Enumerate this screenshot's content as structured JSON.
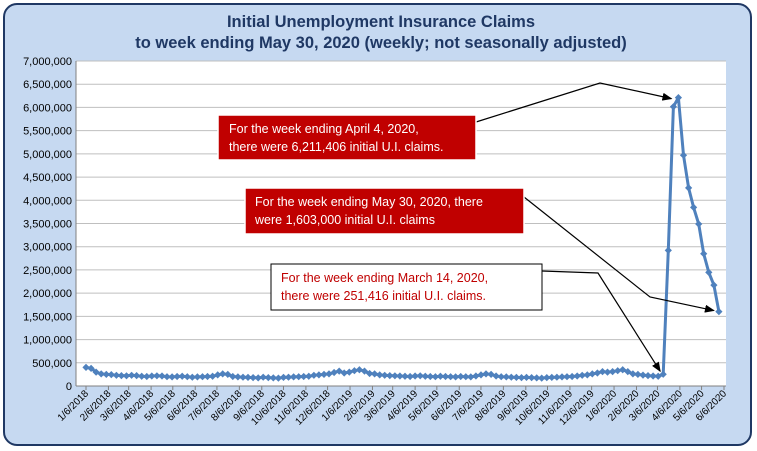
{
  "chart_data": {
    "type": "line",
    "title": "Initial Unemployment Insurance Claims",
    "subtitle": "to week ending May 30, 2020 (weekly; not seasonally adjusted)",
    "xlabel": "",
    "ylabel": "",
    "ylim": [
      0,
      7000000
    ],
    "y_ticks": [
      "0",
      "500,000",
      "1,000,000",
      "1,500,000",
      "2,000,000",
      "2,500,000",
      "3,000,000",
      "3,500,000",
      "4,000,000",
      "4,500,000",
      "5,000,000",
      "5,500,000",
      "6,000,000",
      "6,500,000",
      "7,000,000"
    ],
    "x_ticks": [
      "1/6/2018",
      "2/6/2018",
      "3/6/2018",
      "4/6/2018",
      "5/6/2018",
      "6/6/2018",
      "7/6/2018",
      "8/6/2018",
      "9/6/2018",
      "10/6/2018",
      "11/6/2018",
      "12/6/2018",
      "1/6/2019",
      "2/6/2019",
      "3/6/2019",
      "4/6/2019",
      "5/6/2019",
      "6/6/2019",
      "7/6/2019",
      "8/6/2019",
      "9/6/2019",
      "10/6/2019",
      "11/6/2019",
      "12/6/2019",
      "1/6/2020",
      "2/6/2020",
      "3/6/2020",
      "4/6/2020",
      "5/6/2020",
      "6/6/2020"
    ],
    "grid": true,
    "legend": "none",
    "series_color": "#4f81bd",
    "series": [
      {
        "x": [
          "2018-01-06",
          "2018-01-13",
          "2018-01-20",
          "2018-01-27",
          "2018-02-03",
          "2018-02-10",
          "2018-02-17",
          "2018-02-24",
          "2018-03-03",
          "2018-03-10",
          "2018-03-17",
          "2018-03-24",
          "2018-03-31",
          "2018-04-07",
          "2018-04-14",
          "2018-04-21",
          "2018-04-28",
          "2018-05-05",
          "2018-05-12",
          "2018-05-19",
          "2018-05-26",
          "2018-06-02",
          "2018-06-09",
          "2018-06-16",
          "2018-06-23",
          "2018-06-30",
          "2018-07-07",
          "2018-07-14",
          "2018-07-21",
          "2018-07-28",
          "2018-08-04",
          "2018-08-11",
          "2018-08-18",
          "2018-08-25",
          "2018-09-01",
          "2018-09-08",
          "2018-09-15",
          "2018-09-22",
          "2018-09-29",
          "2018-10-06",
          "2018-10-13",
          "2018-10-20",
          "2018-10-27",
          "2018-11-03",
          "2018-11-10",
          "2018-11-17",
          "2018-11-24",
          "2018-12-01",
          "2018-12-08",
          "2018-12-15",
          "2018-12-22",
          "2018-12-29",
          "2019-01-05",
          "2019-01-12",
          "2019-01-19",
          "2019-01-26",
          "2019-02-02",
          "2019-02-09",
          "2019-02-16",
          "2019-02-23",
          "2019-03-02",
          "2019-03-09",
          "2019-03-16",
          "2019-03-23",
          "2019-03-30",
          "2019-04-06",
          "2019-04-13",
          "2019-04-20",
          "2019-04-27",
          "2019-05-04",
          "2019-05-11",
          "2019-05-18",
          "2019-05-25",
          "2019-06-01",
          "2019-06-08",
          "2019-06-15",
          "2019-06-22",
          "2019-06-29",
          "2019-07-06",
          "2019-07-13",
          "2019-07-20",
          "2019-07-27",
          "2019-08-03",
          "2019-08-10",
          "2019-08-17",
          "2019-08-24",
          "2019-08-31",
          "2019-09-07",
          "2019-09-14",
          "2019-09-21",
          "2019-09-28",
          "2019-10-05",
          "2019-10-12",
          "2019-10-19",
          "2019-10-26",
          "2019-11-02",
          "2019-11-09",
          "2019-11-16",
          "2019-11-23",
          "2019-11-30",
          "2019-12-07",
          "2019-12-14",
          "2019-12-21",
          "2019-12-28",
          "2020-01-04",
          "2020-01-11",
          "2020-01-18",
          "2020-01-25",
          "2020-02-01",
          "2020-02-08",
          "2020-02-15",
          "2020-02-22",
          "2020-02-29",
          "2020-03-07",
          "2020-03-14",
          "2020-03-21",
          "2020-03-28",
          "2020-04-04",
          "2020-04-11",
          "2020-04-18",
          "2020-04-25",
          "2020-05-02",
          "2020-05-09",
          "2020-05-16",
          "2020-05-23",
          "2020-05-30"
        ],
        "values": [
          400000,
          380000,
          300000,
          260000,
          250000,
          245000,
          230000,
          225000,
          220000,
          230000,
          225000,
          210000,
          205000,
          215000,
          220000,
          215000,
          200000,
          195000,
          205000,
          210000,
          200000,
          190000,
          195000,
          200000,
          205000,
          210000,
          240000,
          260000,
          250000,
          205000,
          195000,
          190000,
          185000,
          180000,
          175000,
          190000,
          180000,
          175000,
          170000,
          185000,
          190000,
          195000,
          200000,
          205000,
          210000,
          230000,
          240000,
          250000,
          260000,
          290000,
          320000,
          280000,
          300000,
          330000,
          350000,
          320000,
          270000,
          260000,
          240000,
          230000,
          225000,
          220000,
          215000,
          210000,
          205000,
          215000,
          220000,
          210000,
          205000,
          200000,
          210000,
          205000,
          200000,
          195000,
          205000,
          200000,
          195000,
          215000,
          240000,
          260000,
          250000,
          215000,
          200000,
          195000,
          190000,
          185000,
          180000,
          185000,
          180000,
          175000,
          170000,
          180000,
          185000,
          190000,
          195000,
          200000,
          205000,
          215000,
          230000,
          240000,
          260000,
          280000,
          310000,
          300000,
          310000,
          330000,
          350000,
          310000,
          260000,
          250000,
          235000,
          225000,
          215000,
          210000,
          251416,
          2920000,
          6015000,
          6211406,
          4971000,
          4267000,
          3846000,
          3490000,
          2849000,
          2446000,
          2174000,
          1603000
        ]
      }
    ],
    "annotations": [
      {
        "line1": "For the week ending April 4, 2020,",
        "line2": "there were  6,211,406  initial U.I. claims.",
        "points_to": "2020-04-04"
      },
      {
        "line1": "For the week ending May 30, 2020,  there",
        "line2": "were  1,603,000  initial U.I. claims",
        "points_to": "2020-05-30"
      },
      {
        "line1": "For the week ending March 14, 2020,",
        "line2": "there were  251,416  initial U.I. claims.",
        "points_to": "2020-03-14"
      }
    ]
  }
}
